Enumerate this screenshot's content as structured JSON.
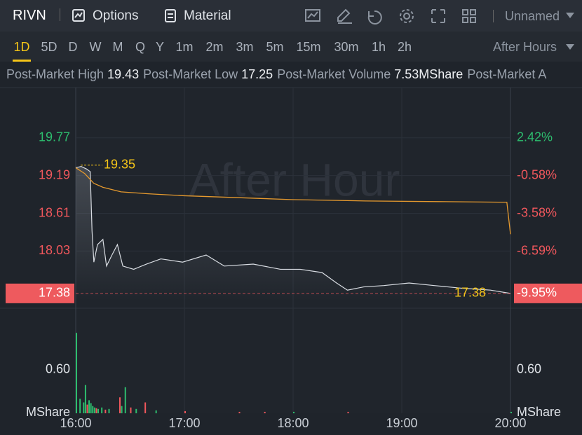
{
  "toolbar": {
    "symbol": "RIVN",
    "buttons": [
      "Options",
      "Material"
    ],
    "layout": "Unnamed"
  },
  "intervals": [
    "1D",
    "5D",
    "D",
    "W",
    "M",
    "Q",
    "Y",
    "1m",
    "2m",
    "3m",
    "5m",
    "15m",
    "30m",
    "1h",
    "2h"
  ],
  "active_interval": 0,
  "session": "After Hours",
  "stats": [
    {
      "label": "Post-Market High",
      "value": 19.43
    },
    {
      "label": "Post-Market Low",
      "value": 17.25
    },
    {
      "label": "Post-Market Volume",
      "value": "7.53MShare"
    },
    {
      "label": "Post-Market A"
    }
  ],
  "chart_data": {
    "type": "line",
    "watermark": "After Hour",
    "xlim": [
      0,
      240
    ],
    "xticks": [
      {
        "value": 0,
        "label": "16:00"
      },
      {
        "value": 60,
        "label": "17:00"
      },
      {
        "value": 120,
        "label": "18:00"
      },
      {
        "value": 180,
        "label": "19:00"
      },
      {
        "value": 240,
        "label": "20:00"
      }
    ],
    "ylim": [
      17.26,
      20.38
    ],
    "yticks": [
      19.77,
      19.19,
      18.61,
      18.03
    ],
    "y2lim": [
      -10.56,
      5.59
    ],
    "y2ticks": [
      {
        "value": 2.42,
        "label": "2.42%"
      },
      {
        "value": -0.58,
        "label": "-0.58%"
      },
      {
        "value": -3.58,
        "label": "-3.58%"
      },
      {
        "value": -6.59,
        "label": "-6.59%"
      }
    ],
    "up_color": "#2dbd6e",
    "down_color": "#f0575c",
    "grid": true,
    "series": [
      {
        "color": "#d9dde3",
        "x": [
          0,
          3,
          6,
          8,
          9,
          10,
          12,
          15,
          17,
          20,
          23,
          26,
          32,
          39,
          47,
          59,
          72,
          82,
          98,
          113,
          124,
          136,
          144,
          150,
          159,
          170,
          184,
          198,
          213,
          229,
          240
        ],
        "values": [
          19.31,
          19.33,
          19.29,
          19.25,
          18.34,
          17.86,
          18.13,
          18.21,
          17.8,
          17.97,
          18.13,
          17.8,
          17.75,
          17.83,
          17.91,
          17.86,
          17.97,
          17.8,
          17.83,
          17.75,
          17.75,
          17.7,
          17.54,
          17.43,
          17.48,
          17.5,
          17.54,
          17.5,
          17.46,
          17.43,
          17.38
        ]
      },
      {
        "color": "#e69a2e",
        "x": [
          0,
          5,
          10,
          15,
          25,
          40,
          60,
          90,
          120,
          160,
          200,
          238,
          240
        ],
        "values": [
          19.31,
          19.22,
          19.07,
          19.01,
          18.94,
          18.91,
          18.88,
          18.85,
          18.82,
          18.8,
          18.79,
          18.78,
          18.29
        ]
      }
    ],
    "high_marker": 19.35,
    "last_price": 17.38,
    "last_change": {
      "value": -9.95,
      "label": "-9.95%"
    },
    "volume": {
      "unit": "MShare",
      "ylim": [
        0,
        1.45
      ],
      "yticks": [
        {
          "value": 0.6,
          "label": "0.60"
        }
      ],
      "x": [
        0,
        2,
        4,
        5,
        6,
        7,
        8,
        9,
        10,
        11,
        12,
        14,
        16,
        18,
        24,
        25,
        27,
        30,
        33,
        38,
        44,
        60,
        90,
        104,
        120,
        150,
        240
      ],
      "values": [
        1.11,
        0.2,
        0.15,
        0.39,
        0.12,
        0.18,
        0.14,
        0.1,
        0.08,
        0.07,
        0.06,
        0.08,
        0.05,
        0.06,
        0.22,
        0.1,
        0.36,
        0.08,
        0.06,
        0.15,
        0.04,
        0.03,
        0.02,
        0.02,
        0.02,
        0.02,
        0.02
      ],
      "colors": [
        "#2dbd6e",
        "#2dbd6e",
        "#2dbd6e",
        "#2dbd6e",
        "#f0575c",
        "#2dbd6e",
        "#2dbd6e",
        "#2dbd6e",
        "#2dbd6e",
        "#f0575c",
        "#2dbd6e",
        "#2dbd6e",
        "#f0575c",
        "#2dbd6e",
        "#f0575c",
        "#2dbd6e",
        "#2dbd6e",
        "#f0575c",
        "#2dbd6e",
        "#f0575c",
        "#2dbd6e",
        "#f0575c",
        "#f0575c",
        "#f0575c",
        "#2dbd6e",
        "#f0575c",
        "#2dbd6e"
      ]
    }
  }
}
